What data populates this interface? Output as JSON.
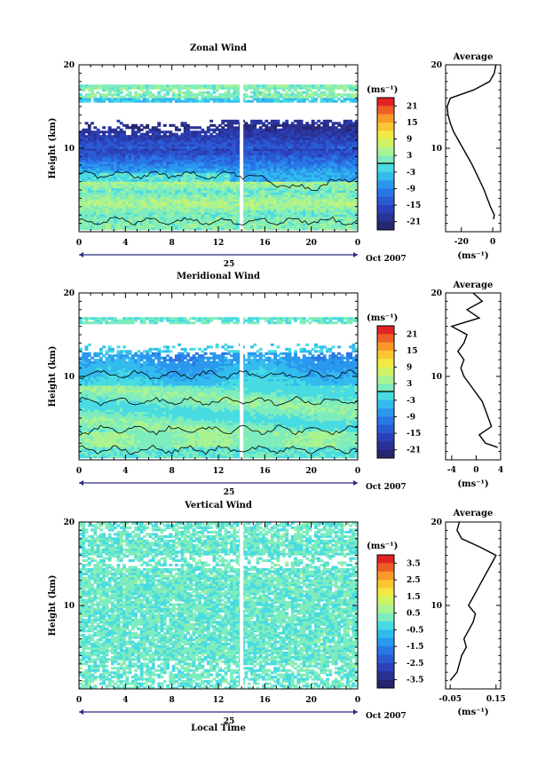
{
  "figure": {
    "xlabel": "Local Time",
    "date_label": "Oct 2007",
    "day_label": "25"
  },
  "chart_data": [
    {
      "type": "heatmap",
      "title": "Zonal Wind",
      "ylabel": "Height (km)",
      "xlim": [
        0,
        24
      ],
      "ylim": [
        0,
        20
      ],
      "x_ticks": [
        "0",
        "4",
        "8",
        "12",
        "16",
        "20",
        "0"
      ],
      "y_ticks": [
        "10",
        "20"
      ],
      "colorbar": {
        "unit": "(ms⁻¹)",
        "min": -24,
        "max": 24,
        "ticks": [
          "21",
          "15",
          "9",
          "3",
          "-3",
          "-9",
          "-15",
          "-21"
        ]
      },
      "zero_contour": true,
      "data_gap_hour": 14,
      "profile": {
        "title": "Average",
        "xlabel": "(ms⁻¹)",
        "x_ticks": [
          "-20",
          "0"
        ],
        "xlim": [
          -30,
          5
        ],
        "heights": [
          1.5,
          2,
          3,
          4,
          5,
          6,
          7,
          8,
          9,
          10,
          11,
          12,
          13,
          14,
          15,
          16,
          17,
          18,
          19,
          20
        ],
        "values": [
          0.5,
          1.0,
          -1.5,
          -3.5,
          -5.5,
          -8,
          -10.5,
          -13,
          -16,
          -19,
          -22,
          -25,
          -27,
          -28.5,
          -29,
          -27,
          -12,
          -2,
          1,
          2
        ]
      }
    },
    {
      "type": "heatmap",
      "title": "Meridional Wind",
      "ylabel": "Height (km)",
      "xlim": [
        0,
        24
      ],
      "ylim": [
        0,
        20
      ],
      "x_ticks": [
        "0",
        "4",
        "8",
        "12",
        "16",
        "20",
        "0"
      ],
      "y_ticks": [
        "10",
        "20"
      ],
      "colorbar": {
        "unit": "(ms⁻¹)",
        "min": -24,
        "max": 24,
        "ticks": [
          "21",
          "15",
          "9",
          "3",
          "-3",
          "-9",
          "-15",
          "-21"
        ]
      },
      "zero_contour": true,
      "data_gap_hour": 14,
      "profile": {
        "title": "Average",
        "xlabel": "(ms⁻¹)",
        "x_ticks": [
          "-4",
          "0",
          "4"
        ],
        "xlim": [
          -5,
          4
        ],
        "heights": [
          1.5,
          2,
          3,
          4,
          5,
          6,
          7,
          8,
          9,
          10,
          11,
          12,
          13,
          14,
          15,
          16,
          17,
          18,
          19,
          20
        ],
        "values": [
          3.5,
          1.5,
          0.5,
          2.5,
          2,
          1.5,
          1,
          0,
          -1,
          -2,
          -2.5,
          -2,
          -3,
          -2,
          -1.5,
          -4,
          0.5,
          -1.5,
          1,
          -0.5
        ]
      }
    },
    {
      "type": "heatmap",
      "title": "Vertical Wind",
      "ylabel": "Height (km)",
      "xlim": [
        0,
        24
      ],
      "ylim": [
        0,
        20
      ],
      "x_ticks": [
        "0",
        "4",
        "8",
        "12",
        "16",
        "20",
        "0"
      ],
      "y_ticks": [
        "10",
        "20"
      ],
      "colorbar": {
        "unit": "(ms⁻¹)",
        "min": -4,
        "max": 4,
        "ticks": [
          "3.5",
          "2.5",
          "1.5",
          "0.5",
          "-0.5",
          "-1.5",
          "-2.5",
          "-3.5"
        ]
      },
      "zero_contour": false,
      "data_gap_hour": 14,
      "profile": {
        "title": "Average",
        "xlabel": "(ms⁻¹)",
        "x_ticks": [
          "-0.05",
          "0.15"
        ],
        "xlim": [
          -0.07,
          0.17
        ],
        "heights": [
          1,
          2,
          3,
          4,
          5,
          6,
          7,
          8,
          9,
          10,
          11,
          12,
          13,
          14,
          15,
          16,
          17,
          18,
          19,
          20
        ],
        "values": [
          -0.05,
          -0.02,
          -0.01,
          0.0,
          0.02,
          0.01,
          0.03,
          0.05,
          0.06,
          0.03,
          0.05,
          0.07,
          0.09,
          0.11,
          0.13,
          0.15,
          0.08,
          0.0,
          -0.02,
          -0.01
        ]
      }
    }
  ]
}
